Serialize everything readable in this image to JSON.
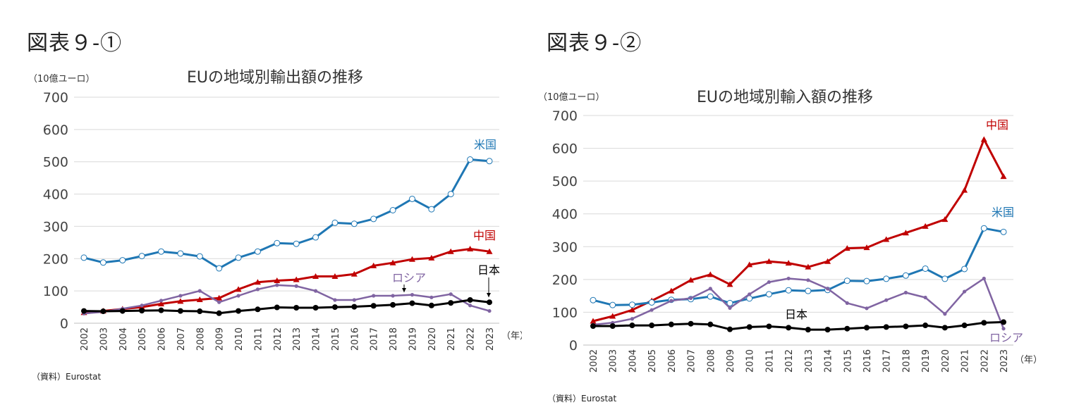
{
  "figures": [
    {
      "label": "図表９-①",
      "source": "（資料）Eurostat"
    },
    {
      "label": "図表９-②",
      "source": "（資料）Eurostat"
    }
  ],
  "chart_data": [
    {
      "type": "line",
      "title": "EUの地域別輸出額の推移",
      "ylabel": "（10億ユーロ）",
      "xlabel": "（年）",
      "ylim": [
        0,
        700
      ],
      "yticks": [
        0,
        100,
        200,
        300,
        400,
        500,
        600,
        700
      ],
      "grid": true,
      "x": [
        "2002",
        "2003",
        "2004",
        "2005",
        "2006",
        "2007",
        "2008",
        "2009",
        "2010",
        "2011",
        "2012",
        "2013",
        "2014",
        "2015",
        "2016",
        "2017",
        "2018",
        "2019",
        "2020",
        "2021",
        "2022",
        "2023"
      ],
      "series": [
        {
          "name": "米国",
          "color": "#1f77b4",
          "marker": "open-circle",
          "values": [
            203,
            188,
            195,
            208,
            222,
            216,
            207,
            170,
            203,
            222,
            248,
            246,
            266,
            311,
            308,
            323,
            350,
            385,
            353,
            400,
            507,
            502
          ]
        },
        {
          "name": "中国",
          "color": "#c00000",
          "marker": "triangle",
          "values": [
            33,
            38,
            44,
            50,
            60,
            68,
            73,
            78,
            105,
            127,
            132,
            135,
            145,
            145,
            152,
            178,
            187,
            198,
            202,
            222,
            230,
            222
          ]
        },
        {
          "name": "ロシア",
          "color": "#8064a2",
          "marker": "small-dot",
          "values": [
            30,
            35,
            45,
            55,
            70,
            85,
            100,
            65,
            85,
            105,
            118,
            115,
            100,
            72,
            72,
            85,
            85,
            88,
            80,
            90,
            55,
            38
          ]
        },
        {
          "name": "日本",
          "color": "#000000",
          "marker": "filled-circle",
          "values": [
            38,
            37,
            38,
            39,
            40,
            38,
            37,
            31,
            38,
            43,
            49,
            48,
            48,
            50,
            51,
            54,
            57,
            62,
            55,
            63,
            72,
            65
          ]
        }
      ]
    },
    {
      "type": "line",
      "title": "EUの地域別輸入額の推移",
      "ylabel": "（10億ユーロ）",
      "xlabel": "（年）",
      "ylim": [
        0,
        700
      ],
      "yticks": [
        0,
        100,
        200,
        300,
        400,
        500,
        600,
        700
      ],
      "grid": true,
      "x": [
        "2002",
        "2003",
        "2004",
        "2005",
        "2006",
        "2007",
        "2008",
        "2009",
        "2010",
        "2011",
        "2012",
        "2013",
        "2014",
        "2015",
        "2016",
        "2017",
        "2018",
        "2019",
        "2020",
        "2021",
        "2022",
        "2023"
      ],
      "series": [
        {
          "name": "中国",
          "color": "#c00000",
          "marker": "triangle",
          "values": [
            73,
            88,
            107,
            135,
            165,
            198,
            215,
            185,
            245,
            255,
            250,
            238,
            255,
            295,
            297,
            322,
            342,
            362,
            383,
            472,
            627,
            514
          ]
        },
        {
          "name": "米国",
          "color": "#1f77b4",
          "marker": "open-circle",
          "values": [
            137,
            122,
            123,
            130,
            138,
            140,
            148,
            128,
            142,
            155,
            167,
            165,
            168,
            196,
            195,
            202,
            212,
            233,
            202,
            232,
            356,
            345
          ]
        },
        {
          "name": "ロシア",
          "color": "#8064a2",
          "marker": "small-dot",
          "values": [
            62,
            68,
            80,
            107,
            135,
            143,
            172,
            113,
            155,
            192,
            203,
            198,
            172,
            128,
            112,
            137,
            160,
            145,
            95,
            163,
            203,
            50
          ]
        },
        {
          "name": "日本",
          "color": "#000000",
          "marker": "filled-circle",
          "values": [
            58,
            58,
            60,
            60,
            63,
            65,
            63,
            48,
            55,
            57,
            53,
            47,
            47,
            50,
            53,
            55,
            57,
            60,
            53,
            60,
            68,
            70
          ]
        }
      ]
    }
  ]
}
